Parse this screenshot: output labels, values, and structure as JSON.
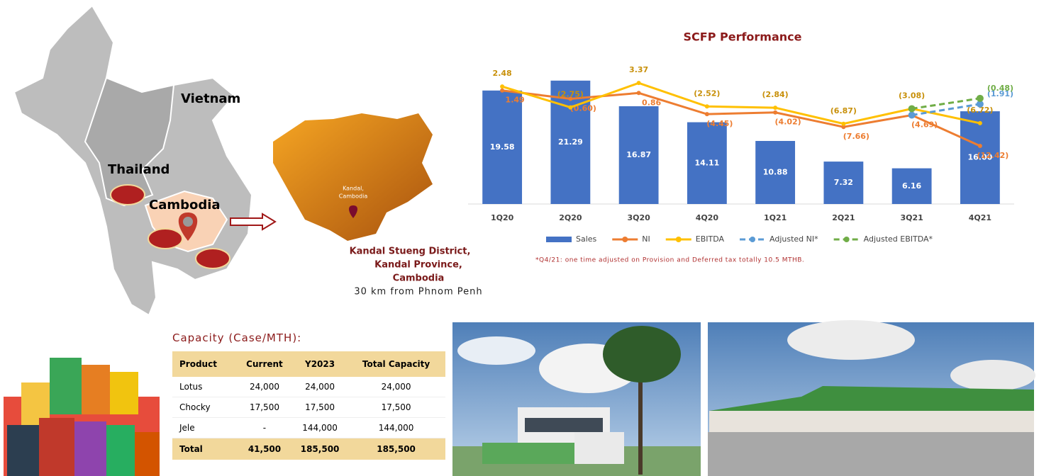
{
  "map": {
    "countries": [
      "Vietnam",
      "Thailand",
      "Cambodia"
    ],
    "inset_label": [
      "Kandal,",
      "Cambodia"
    ],
    "address": [
      "Kandal Stueng District,",
      "Kandal Province,",
      "Cambodia"
    ],
    "distance": "30 km from Phnom Penh"
  },
  "chart_data": {
    "type": "bar",
    "title": "SCFP Performance",
    "categories": [
      "1Q20",
      "2Q20",
      "3Q20",
      "4Q20",
      "1Q21",
      "2Q21",
      "3Q21",
      "4Q21"
    ],
    "ylim": [
      0,
      22
    ],
    "y2lim": [
      -27,
      5
    ],
    "series": [
      {
        "name": "Sales",
        "color": "#4472c4",
        "type": "bar",
        "values": [
          19.58,
          21.29,
          16.87,
          14.11,
          10.88,
          7.32,
          6.16,
          16.0
        ],
        "value_labels": [
          "19.58",
          "21.29",
          "16.87",
          "14.11",
          "10.88",
          "7.32",
          "6.16",
          "16.00"
        ]
      },
      {
        "name": "NI",
        "color": "#ed7d31",
        "type": "line",
        "axis": "y2",
        "values": [
          1.49,
          -0.6,
          0.86,
          -4.45,
          -4.02,
          -7.66,
          -4.69,
          -12.42
        ],
        "value_labels": [
          "1.49",
          "(0.60)",
          "0.86",
          "(4.45)",
          "(4.02)",
          "(7.66)",
          "(4.69)",
          "(12.42)"
        ]
      },
      {
        "name": "EBITDA",
        "color": "#ffc000",
        "type": "line",
        "axis": "y2",
        "values": [
          2.48,
          -2.75,
          3.37,
          -2.52,
          -2.84,
          -6.87,
          -3.08,
          -6.72
        ],
        "value_labels": [
          "2.48",
          "(2.75)",
          "3.37",
          "(2.52)",
          "(2.84)",
          "(6.87)",
          "(3.08)",
          "(6.72)"
        ]
      },
      {
        "name": "Adjusted NI*",
        "color": "#5b9bd5",
        "type": "line",
        "dashed": true,
        "axis": "y2",
        "values": [
          null,
          null,
          null,
          null,
          null,
          null,
          -4.69,
          -1.91
        ],
        "value_labels": [
          null,
          null,
          null,
          null,
          null,
          null,
          null,
          "(1.91)"
        ]
      },
      {
        "name": "Adjusted EBITDA*",
        "color": "#70ad47",
        "type": "line",
        "dashed": true,
        "axis": "y2",
        "values": [
          null,
          null,
          null,
          null,
          null,
          null,
          -3.08,
          -0.48
        ],
        "value_labels": [
          null,
          null,
          null,
          null,
          null,
          null,
          null,
          "(0.48)"
        ]
      }
    ],
    "note": "*Q4/21: one time adjusted on Provision and Deferred tax totally 10.5 MTHB."
  },
  "capacity": {
    "title": "Capacity (Case/MTH):",
    "header": [
      "Product",
      "Current",
      "Y2023",
      "Total Capacity"
    ],
    "rows": [
      [
        "Lotus",
        "24,000",
        "24,000",
        "24,000"
      ],
      [
        "Chocky",
        "17,500",
        "17,500",
        "17,500"
      ],
      [
        "Jele",
        "-",
        "144,000",
        "144,000"
      ],
      [
        "Total",
        "41,500",
        "185,500",
        "185,500"
      ]
    ]
  }
}
